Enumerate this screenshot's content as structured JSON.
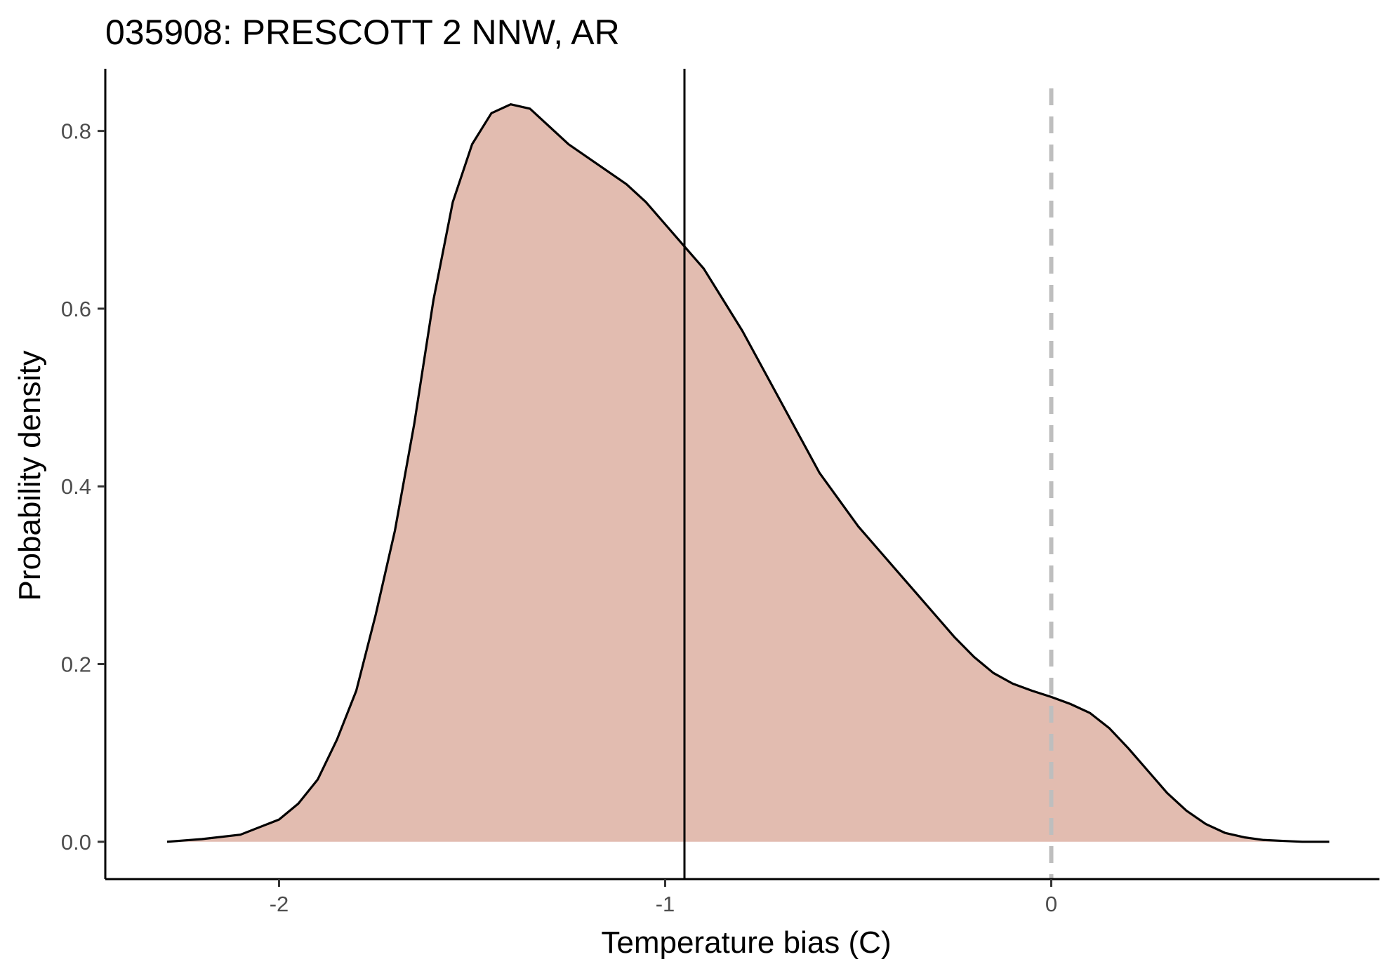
{
  "chart_data": {
    "type": "area",
    "title": "035908: PRESCOTT 2 NNW, AR",
    "xlabel": "Temperature bias (C)",
    "ylabel": "Probability density",
    "xlim": [
      -2.45,
      0.85
    ],
    "ylim": [
      -0.042,
      0.87
    ],
    "x_ticks": [
      -2,
      -1,
      0
    ],
    "x_tick_labels": [
      "-2",
      "-1",
      "0"
    ],
    "y_ticks": [
      0.0,
      0.2,
      0.4,
      0.6,
      0.8
    ],
    "y_tick_labels": [
      "0.0",
      "0.2",
      "0.4",
      "0.6",
      "0.8"
    ],
    "grid": false,
    "series": [
      {
        "fill_color": "#e2bcb0",
        "line_color": "#000000",
        "x": [
          -2.29,
          -2.2,
          -2.1,
          -2.0,
          -1.95,
          -1.9,
          -1.85,
          -1.8,
          -1.75,
          -1.7,
          -1.65,
          -1.6,
          -1.55,
          -1.5,
          -1.45,
          -1.4,
          -1.35,
          -1.3,
          -1.25,
          -1.2,
          -1.15,
          -1.1,
          -1.05,
          -1.0,
          -0.95,
          -0.9,
          -0.85,
          -0.8,
          -0.75,
          -0.7,
          -0.65,
          -0.6,
          -0.55,
          -0.5,
          -0.45,
          -0.4,
          -0.35,
          -0.3,
          -0.25,
          -0.2,
          -0.15,
          -0.1,
          -0.05,
          0.0,
          0.05,
          0.1,
          0.15,
          0.2,
          0.25,
          0.3,
          0.35,
          0.4,
          0.45,
          0.5,
          0.55,
          0.6,
          0.65,
          0.72
        ],
        "y": [
          0.0,
          0.003,
          0.008,
          0.025,
          0.043,
          0.07,
          0.115,
          0.17,
          0.255,
          0.35,
          0.47,
          0.61,
          0.72,
          0.785,
          0.82,
          0.83,
          0.825,
          0.805,
          0.785,
          0.77,
          0.755,
          0.74,
          0.72,
          0.695,
          0.67,
          0.645,
          0.61,
          0.575,
          0.535,
          0.495,
          0.455,
          0.415,
          0.385,
          0.355,
          0.33,
          0.305,
          0.28,
          0.255,
          0.23,
          0.208,
          0.19,
          0.178,
          0.17,
          0.163,
          0.155,
          0.145,
          0.128,
          0.105,
          0.08,
          0.055,
          0.035,
          0.02,
          0.01,
          0.005,
          0.002,
          0.001,
          0.0,
          0.0
        ]
      }
    ],
    "reference_lines": [
      {
        "x": -0.95,
        "style": "solid",
        "color": "#000000"
      },
      {
        "x": 0.0,
        "style": "dashed",
        "color": "#bebebe"
      }
    ]
  }
}
